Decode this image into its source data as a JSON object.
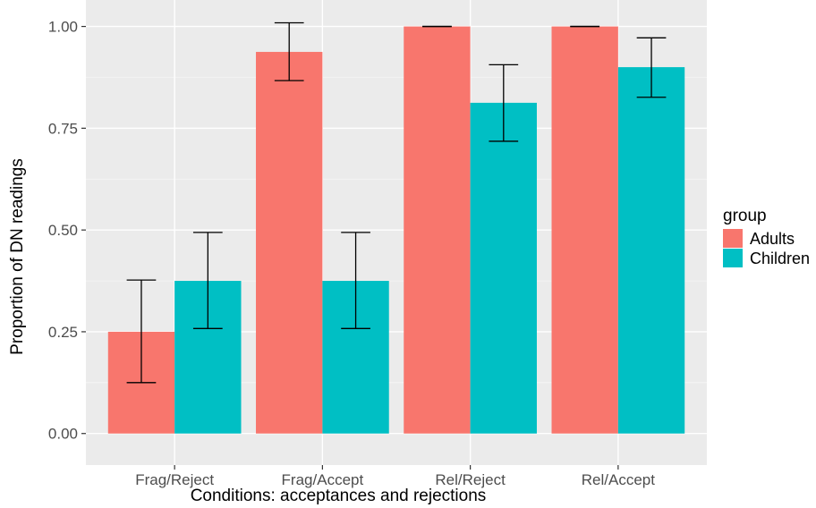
{
  "chart_data": {
    "type": "bar",
    "title": "",
    "xlabel": "Conditions: acceptances and rejections",
    "ylabel": "Proportion of DN readings",
    "categories": [
      "Frag/Reject",
      "Frag/Accept",
      "Rel/Reject",
      "Rel/Accept"
    ],
    "ylim": [
      -0.0775,
      1.065
    ],
    "yticks": [
      0.0,
      0.25,
      0.5,
      0.75,
      1.0
    ],
    "ytick_labels": [
      "0.00",
      "0.25",
      "0.50",
      "0.75",
      "1.00"
    ],
    "grid": true,
    "legend": {
      "title": "group",
      "position": "right"
    },
    "series": [
      {
        "name": "Adults",
        "color": "#F8766D",
        "values": [
          0.25,
          0.9375,
          1.0,
          1.0
        ],
        "error_low": [
          0.125,
          0.867,
          1.0,
          1.0
        ],
        "error_high": [
          0.377,
          1.009,
          1.0,
          1.0
        ]
      },
      {
        "name": "Children",
        "color": "#00BFC4",
        "values": [
          0.375,
          0.375,
          0.8125,
          0.9
        ],
        "error_low": [
          0.258,
          0.258,
          0.718,
          0.826
        ],
        "error_high": [
          0.494,
          0.494,
          0.906,
          0.972
        ]
      }
    ]
  }
}
